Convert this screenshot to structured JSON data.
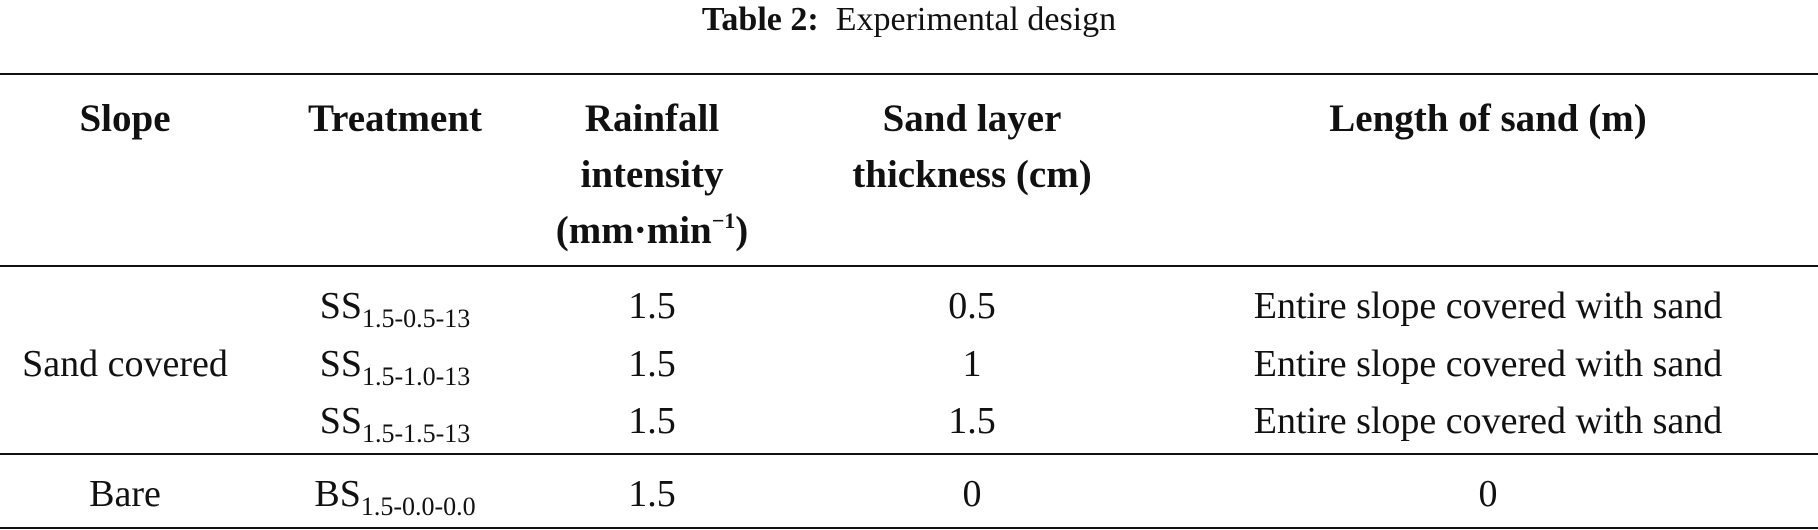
{
  "caption": {
    "label": "Table 2:",
    "title": "Experimental design"
  },
  "table": {
    "headers": {
      "slope": "Slope",
      "treatment": "Treatment",
      "rainfall_line1": "Rainfall",
      "rainfall_line2": "intensity",
      "rainfall_line3_base": "(mm·min",
      "rainfall_line3_sup": "−1",
      "rainfall_line3_end": ")",
      "sand_line1": "Sand layer",
      "sand_line2": "thickness (cm)",
      "length": "Length of sand (m)"
    },
    "groups": [
      {
        "slope": "Sand covered",
        "rows": [
          {
            "treatment_base": "SS",
            "treatment_sub": "1.5-0.5-13",
            "rainfall": "1.5",
            "thickness": "0.5",
            "length": "Entire slope covered with sand"
          },
          {
            "treatment_base": "SS",
            "treatment_sub": "1.5-1.0-13",
            "rainfall": "1.5",
            "thickness": "1",
            "length": "Entire slope covered with sand"
          },
          {
            "treatment_base": "SS",
            "treatment_sub": "1.5-1.5-13",
            "rainfall": "1.5",
            "thickness": "1.5",
            "length": "Entire slope covered with sand"
          }
        ]
      },
      {
        "slope": "Bare",
        "rows": [
          {
            "treatment_base": "BS",
            "treatment_sub": "1.5-0.0-0.0",
            "rainfall": "1.5",
            "thickness": "0",
            "length": "0"
          }
        ]
      }
    ]
  }
}
